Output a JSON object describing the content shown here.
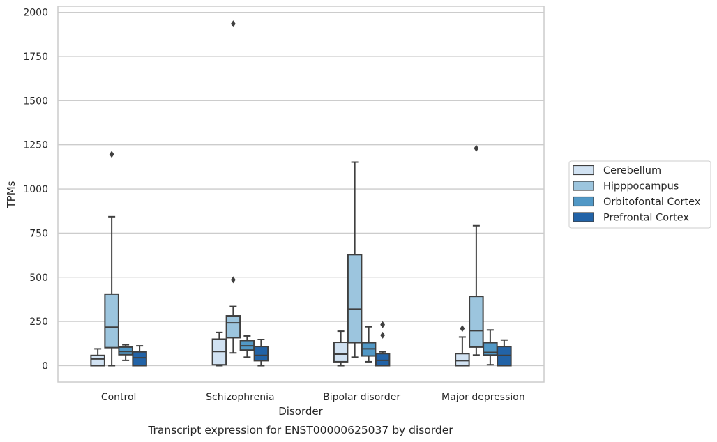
{
  "caption": "Transcript expression for ENST00000625037 by disorder",
  "chart_data": {
    "type": "box",
    "title": "",
    "xlabel": "Disorder",
    "ylabel": "TPMs",
    "ylim": [
      -95,
      2035
    ],
    "yticks": [
      0,
      250,
      500,
      750,
      1000,
      1250,
      1500,
      1750,
      2000
    ],
    "ytick_labels": [
      "0",
      "250",
      "500",
      "750",
      "1000",
      "1250",
      "1500",
      "1750",
      "2000"
    ],
    "grid": "horizontal",
    "legend_position": "right",
    "categories": [
      "Control",
      "Schizophrenia",
      "Bipolar disorder",
      "Major depression"
    ],
    "series": [
      {
        "name": "Cerebellum",
        "color": "#d1e2f2",
        "boxes": [
          {
            "whisker_low": 0,
            "q1": 0,
            "median": 38,
            "q3": 58,
            "whisker_high": 95,
            "outliers": []
          },
          {
            "whisker_low": 0,
            "q1": 5,
            "median": 80,
            "q3": 150,
            "whisker_high": 188,
            "outliers": []
          },
          {
            "whisker_low": 0,
            "q1": 22,
            "median": 65,
            "q3": 132,
            "whisker_high": 195,
            "outliers": []
          },
          {
            "whisker_low": 0,
            "q1": 0,
            "median": 28,
            "q3": 68,
            "whisker_high": 162,
            "outliers": [
              210
            ]
          }
        ]
      },
      {
        "name": "Hipppocampus",
        "color": "#9cc5de",
        "boxes": [
          {
            "whisker_low": 0,
            "q1": 102,
            "median": 218,
            "q3": 405,
            "whisker_high": 843,
            "outliers": [
              1196
            ]
          },
          {
            "whisker_low": 72,
            "q1": 158,
            "median": 242,
            "q3": 282,
            "whisker_high": 335,
            "outliers": [
              486,
              1935
            ]
          },
          {
            "whisker_low": 48,
            "q1": 130,
            "median": 320,
            "q3": 628,
            "whisker_high": 1152,
            "outliers": []
          },
          {
            "whisker_low": 60,
            "q1": 105,
            "median": 198,
            "q3": 392,
            "whisker_high": 792,
            "outliers": [
              1230
            ]
          }
        ]
      },
      {
        "name": "Orbitofontal Cortex",
        "color": "#5198c6",
        "boxes": [
          {
            "whisker_low": 30,
            "q1": 62,
            "median": 80,
            "q3": 105,
            "whisker_high": 118,
            "outliers": []
          },
          {
            "whisker_low": 48,
            "q1": 88,
            "median": 112,
            "q3": 142,
            "whisker_high": 168,
            "outliers": []
          },
          {
            "whisker_low": 22,
            "q1": 55,
            "median": 95,
            "q3": 130,
            "whisker_high": 220,
            "outliers": []
          },
          {
            "whisker_low": 5,
            "q1": 60,
            "median": 75,
            "q3": 130,
            "whisker_high": 202,
            "outliers": []
          }
        ]
      },
      {
        "name": "Prefrontal Cortex",
        "color": "#2263a7",
        "boxes": [
          {
            "whisker_low": 0,
            "q1": 0,
            "median": 45,
            "q3": 78,
            "whisker_high": 112,
            "outliers": []
          },
          {
            "whisker_low": 0,
            "q1": 28,
            "median": 58,
            "q3": 108,
            "whisker_high": 148,
            "outliers": []
          },
          {
            "whisker_low": 0,
            "q1": 0,
            "median": 30,
            "q3": 68,
            "whisker_high": 78,
            "outliers": [
              172,
              232
            ]
          },
          {
            "whisker_low": 0,
            "q1": 0,
            "median": 58,
            "q3": 108,
            "whisker_high": 145,
            "outliers": []
          }
        ]
      }
    ]
  }
}
